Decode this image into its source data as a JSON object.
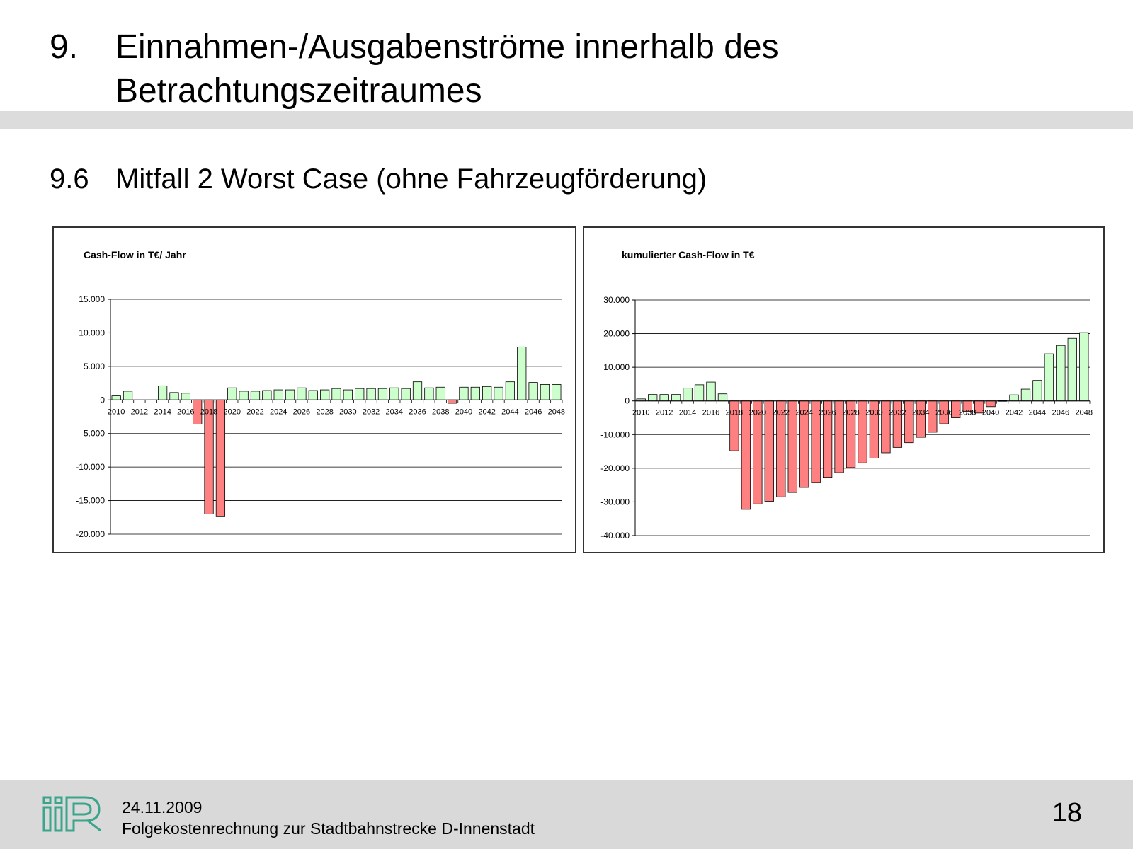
{
  "slide": {
    "title_number": "9.",
    "title_text": "Einnahmen-/Ausgabenströme innerhalb des Betrachtungszeitraumes",
    "subtitle_number": "9.6",
    "subtitle_text": "Mitfall 2 Worst Case (ohne Fahrzeugförderung)"
  },
  "footer": {
    "date": "24.11.2009",
    "text": "Folgekostenrechnung zur Stadtbahnstrecke D-Innenstadt",
    "page_number": "18",
    "logo_color": "#3aa58a"
  },
  "colors": {
    "positive_bar": "#ccffcc",
    "negative_bar": "#ff8080",
    "bar_outline": "#000000",
    "grid": "#000000"
  },
  "chart_data": [
    {
      "type": "bar",
      "title": "Cash-Flow in T€/ Jahr",
      "xlabel": "",
      "ylabel": "",
      "x": [
        2010,
        2011,
        2012,
        2013,
        2014,
        2015,
        2016,
        2017,
        2018,
        2019,
        2020,
        2021,
        2022,
        2023,
        2024,
        2025,
        2026,
        2027,
        2028,
        2029,
        2030,
        2031,
        2032,
        2033,
        2034,
        2035,
        2036,
        2037,
        2038,
        2039,
        2040,
        2041,
        2042,
        2043,
        2044,
        2045,
        2046,
        2047,
        2048
      ],
      "x_tick_labels": [
        "2010",
        "2012",
        "2014",
        "2016",
        "2018",
        "2020",
        "2022",
        "2024",
        "2026",
        "2028",
        "2030",
        "2032",
        "2034",
        "2036",
        "2038",
        "2040",
        "2042",
        "2044",
        "2046",
        "2048"
      ],
      "values": [
        600,
        1300,
        0,
        0,
        2100,
        1100,
        1000,
        -3600,
        -17000,
        -17400,
        1800,
        1300,
        1300,
        1400,
        1500,
        1500,
        1800,
        1400,
        1500,
        1700,
        1500,
        1700,
        1700,
        1700,
        1800,
        1700,
        2700,
        1800,
        1900,
        -500,
        1900,
        1900,
        2000,
        1900,
        2700,
        7900,
        2600,
        2300,
        2300
      ],
      "y_tick_labels": [
        "15.000",
        "10.000",
        "5.000",
        "0",
        "-5.000",
        "-10.000",
        "-15.000",
        "-20.000"
      ],
      "ylim": [
        -20000,
        15000
      ],
      "grid": true
    },
    {
      "type": "bar",
      "title": "kumulierter Cash-Flow in T€",
      "xlabel": "",
      "ylabel": "",
      "x": [
        2010,
        2011,
        2012,
        2013,
        2014,
        2015,
        2016,
        2017,
        2018,
        2019,
        2020,
        2021,
        2022,
        2023,
        2024,
        2025,
        2026,
        2027,
        2028,
        2029,
        2030,
        2031,
        2032,
        2033,
        2034,
        2035,
        2036,
        2037,
        2038,
        2039,
        2040,
        2041,
        2042,
        2043,
        2044,
        2045,
        2046,
        2047,
        2048
      ],
      "x_tick_labels": [
        "2010",
        "2012",
        "2014",
        "2016",
        "2018",
        "2020",
        "2022",
        "2024",
        "2026",
        "2028",
        "2030",
        "2032",
        "2034",
        "2036",
        "2038",
        "2040",
        "2042",
        "2044",
        "2046",
        "2048"
      ],
      "values": [
        600,
        1900,
        1900,
        1900,
        3800,
        4800,
        5600,
        2100,
        -14800,
        -32200,
        -30600,
        -29800,
        -28500,
        -27200,
        -25700,
        -24200,
        -22700,
        -21300,
        -19800,
        -18400,
        -17000,
        -15400,
        -13800,
        -12400,
        -10800,
        -9300,
        -6800,
        -5000,
        -3100,
        -3600,
        -1700,
        100,
        1800,
        3500,
        6100,
        14000,
        16500,
        18600,
        20300
      ],
      "y_tick_labels": [
        "30.000",
        "20.000",
        "10.000",
        "0",
        "-10.000",
        "-20.000",
        "-30.000",
        "-40.000"
      ],
      "ylim": [
        -40000,
        30000
      ],
      "grid": true
    }
  ]
}
